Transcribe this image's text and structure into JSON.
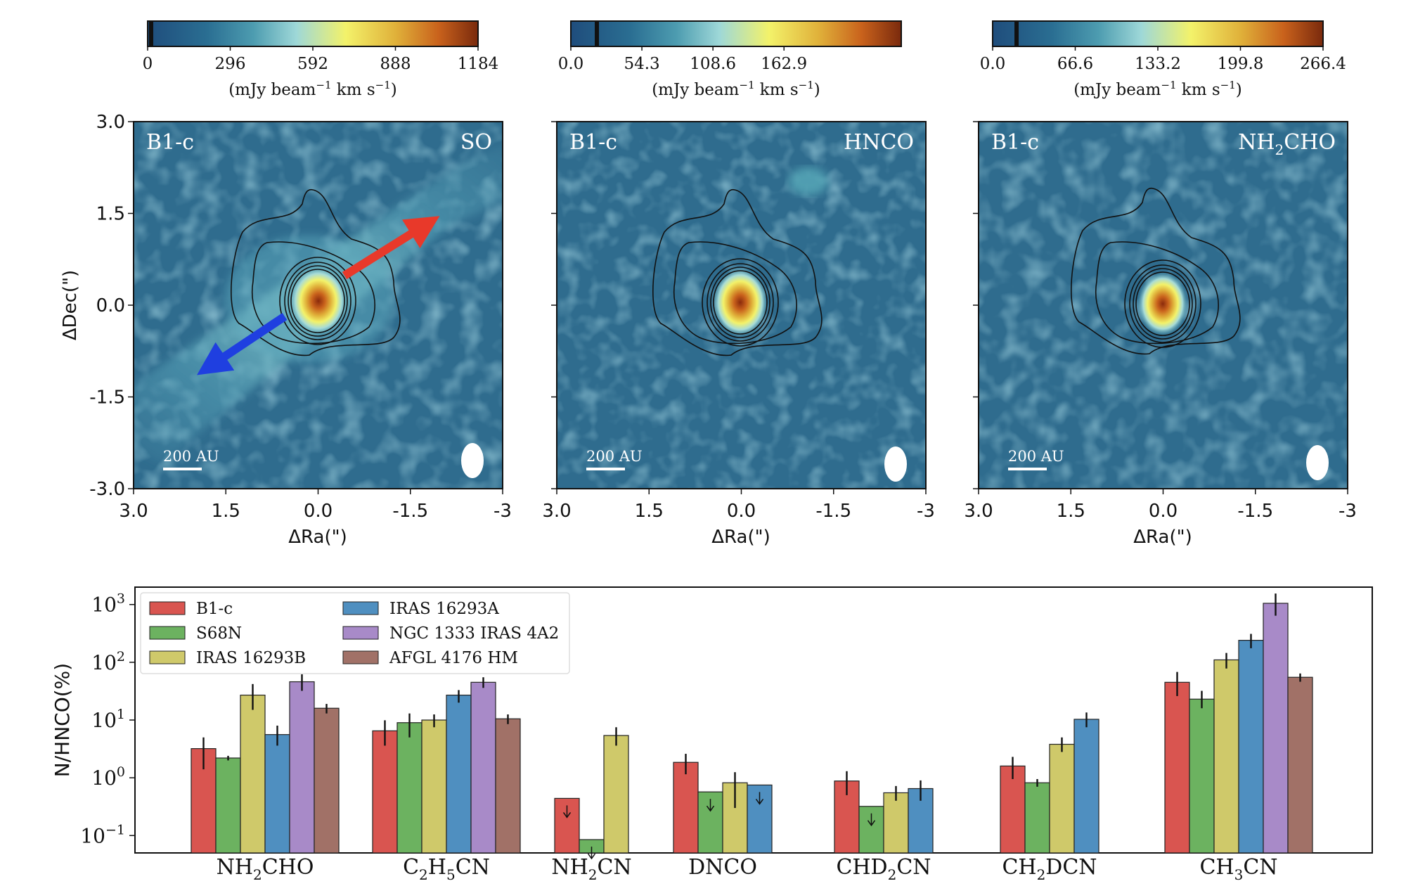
{
  "colors": {
    "colormap": [
      "#1f4d7c",
      "#2a6e92",
      "#4d9cb0",
      "#9ed8d8",
      "#f3f26a",
      "#e0b13a",
      "#c9621c",
      "#7a2a0d"
    ],
    "red_arrow": "#e8392a",
    "blue_arrow": "#1f3fe0",
    "background_map": "#2f6c8e",
    "series": [
      "#d95550",
      "#6cb260",
      "#cfc96a",
      "#4f8fc0",
      "#a88ac8",
      "#a17167"
    ]
  },
  "panels": [
    {
      "id": "so",
      "source": "B1-c",
      "molecule": {
        "base": "SO",
        "sub": "",
        "tail": ""
      },
      "colorbar": {
        "ticks": [
          "0",
          "296",
          "592",
          "888",
          "1184"
        ],
        "unit": {
          "pre": "(mJy beam",
          "exp1": "−1",
          "mid": " km s",
          "exp2": "−1",
          "post": ")"
        }
      },
      "scale_bar": "200 AU",
      "has_outflow_arrows": true
    },
    {
      "id": "hnco",
      "source": "B1-c",
      "molecule": {
        "base": "HNCO",
        "sub": "",
        "tail": ""
      },
      "colorbar": {
        "ticks": [
          "0.0",
          "54.3",
          "108.6",
          "162.9"
        ],
        "unit": {
          "pre": "(mJy beam",
          "exp1": "−1",
          "mid": " km s",
          "exp2": "−1",
          "post": ")"
        }
      },
      "scale_bar": "200 AU",
      "has_outflow_arrows": false
    },
    {
      "id": "nh2cho",
      "source": "B1-c",
      "molecule": {
        "base": "NH",
        "sub": "2",
        "tail": "CHO"
      },
      "colorbar": {
        "ticks": [
          "0.0",
          "66.6",
          "133.2",
          "199.8",
          "266.4"
        ],
        "unit": {
          "pre": "(mJy beam",
          "exp1": "−1",
          "mid": " km s",
          "exp2": "−1",
          "post": ")"
        }
      },
      "scale_bar": "200 AU",
      "has_outflow_arrows": false
    }
  ],
  "map_axes": {
    "x_ticks": [
      "3.0",
      "1.5",
      "0.0",
      "-1.5",
      "-3"
    ],
    "y_ticks": [
      "3.0",
      "1.5",
      "0.0",
      "-1.5",
      "-3.0"
    ],
    "xlabel": "ΔRa(\")",
    "ylabel": "ΔDec(\")"
  },
  "chart_data": {
    "type": "bar",
    "ylabel": "N/HNCO(%)",
    "yscale": "log",
    "ylim": [
      0.05,
      2000
    ],
    "y_ticks": [
      {
        "base": "10",
        "exp": "3"
      },
      {
        "base": "10",
        "exp": "2"
      },
      {
        "base": "10",
        "exp": "1"
      },
      {
        "base": "10",
        "exp": "0"
      },
      {
        "base": "10",
        "exp": "−1"
      }
    ],
    "legend": [
      "B1-c",
      "S68N",
      "IRAS 16293B",
      "IRAS 16293A",
      "NGC 1333 IRAS 4A2",
      "AFGL 4176 HM"
    ],
    "groups": [
      {
        "label": {
          "base": "NH",
          "sub": "2",
          "tail": "CHO"
        },
        "bars": [
          {
            "series": 0,
            "value": 3.2,
            "err": [
              1.4,
              5.0
            ],
            "upper_limit": false
          },
          {
            "series": 1,
            "value": 2.2,
            "err": [
              2.0,
              2.4
            ],
            "upper_limit": false
          },
          {
            "series": 2,
            "value": 27,
            "err": [
              15,
              42
            ],
            "upper_limit": false
          },
          {
            "series": 3,
            "value": 5.6,
            "err": [
              3.6,
              8.0
            ],
            "upper_limit": false
          },
          {
            "series": 4,
            "value": 46,
            "err": [
              32,
              62
            ],
            "upper_limit": false
          },
          {
            "series": 5,
            "value": 16,
            "err": [
              13,
              19
            ],
            "upper_limit": false
          }
        ]
      },
      {
        "label": {
          "base": "C",
          "sub": "2",
          "tail": "H",
          "sub2": "5",
          "tail2": "CN"
        },
        "bars": [
          {
            "series": 0,
            "value": 6.5,
            "err": [
              3.6,
              9.9
            ],
            "upper_limit": false
          },
          {
            "series": 1,
            "value": 9.0,
            "err": [
              5.0,
              13
            ],
            "upper_limit": false
          },
          {
            "series": 2,
            "value": 10,
            "err": [
              7.5,
              12.5
            ],
            "upper_limit": false
          },
          {
            "series": 3,
            "value": 27,
            "err": [
              20,
              33
            ],
            "upper_limit": false
          },
          {
            "series": 4,
            "value": 45,
            "err": [
              36,
              55
            ],
            "upper_limit": false
          },
          {
            "series": 5,
            "value": 10.5,
            "err": [
              8.5,
              12.5
            ],
            "upper_limit": false
          }
        ]
      },
      {
        "label": {
          "base": "NH",
          "sub": "2",
          "tail": "CN"
        },
        "bars": [
          {
            "series": 0,
            "value": 0.44,
            "err": null,
            "upper_limit": true
          },
          {
            "series": 1,
            "value": 0.085,
            "err": null,
            "upper_limit": true
          },
          {
            "series": 2,
            "value": 5.4,
            "err": [
              3.6,
              7.5
            ],
            "upper_limit": false
          }
        ]
      },
      {
        "label": {
          "base": "DNCO",
          "sub": "",
          "tail": ""
        },
        "bars": [
          {
            "series": 0,
            "value": 1.85,
            "err": [
              1.15,
              2.6
            ],
            "upper_limit": false
          },
          {
            "series": 1,
            "value": 0.57,
            "err": null,
            "upper_limit": true
          },
          {
            "series": 2,
            "value": 0.82,
            "err": [
              0.3,
              1.25
            ],
            "upper_limit": false
          },
          {
            "series": 3,
            "value": 0.75,
            "err": null,
            "upper_limit": true
          }
        ]
      },
      {
        "label": {
          "base": "CHD",
          "sub": "2",
          "tail": "CN"
        },
        "bars": [
          {
            "series": 0,
            "value": 0.88,
            "err": [
              0.5,
              1.3
            ],
            "upper_limit": false
          },
          {
            "series": 1,
            "value": 0.32,
            "err": null,
            "upper_limit": true
          },
          {
            "series": 2,
            "value": 0.55,
            "err": [
              0.4,
              0.72
            ],
            "upper_limit": false
          },
          {
            "series": 3,
            "value": 0.65,
            "err": [
              0.4,
              0.9
            ],
            "upper_limit": false
          }
        ]
      },
      {
        "label": {
          "base": "CH",
          "sub": "2",
          "tail": "DCN"
        },
        "bars": [
          {
            "series": 0,
            "value": 1.6,
            "err": [
              0.95,
              2.3
            ],
            "upper_limit": false
          },
          {
            "series": 1,
            "value": 0.82,
            "err": [
              0.7,
              0.95
            ],
            "upper_limit": false
          },
          {
            "series": 2,
            "value": 3.8,
            "err": [
              2.8,
              5.0
            ],
            "upper_limit": false
          },
          {
            "series": 3,
            "value": 10.3,
            "err": [
              7.5,
              13.5
            ],
            "upper_limit": false
          }
        ]
      },
      {
        "label": {
          "base": "CH",
          "sub": "3",
          "tail": "CN"
        },
        "bars": [
          {
            "series": 0,
            "value": 45,
            "err": [
              26,
              68
            ],
            "upper_limit": false
          },
          {
            "series": 1,
            "value": 23,
            "err": [
              16,
              32
            ],
            "upper_limit": false
          },
          {
            "series": 2,
            "value": 110,
            "err": [
              78,
              145
            ],
            "upper_limit": false
          },
          {
            "series": 3,
            "value": 240,
            "err": [
              175,
              310
            ],
            "upper_limit": false
          },
          {
            "series": 4,
            "value": 1050,
            "err": [
              640,
              1550
            ],
            "upper_limit": false
          },
          {
            "series": 5,
            "value": 55,
            "err": [
              46,
              64
            ],
            "upper_limit": false
          }
        ]
      }
    ]
  }
}
